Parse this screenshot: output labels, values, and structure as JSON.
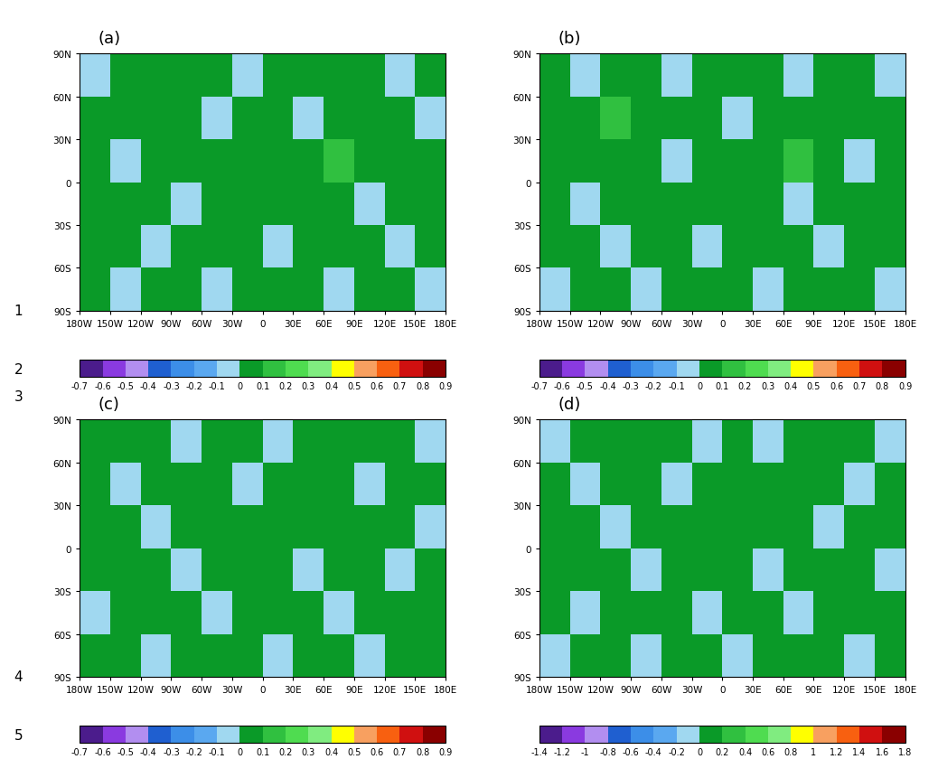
{
  "line_numbers": [
    "1",
    "2",
    "3",
    "4",
    "5"
  ],
  "chart_data": [
    {
      "type": "heatmap",
      "title": "(a)",
      "xlim": [
        -180,
        180
      ],
      "ylim": [
        -90,
        90
      ],
      "xticks": [
        {
          "value": -180,
          "label": "180W"
        },
        {
          "value": -150,
          "label": "150W"
        },
        {
          "value": -120,
          "label": "120W"
        },
        {
          "value": -90,
          "label": "90W"
        },
        {
          "value": -60,
          "label": "60W"
        },
        {
          "value": -30,
          "label": "30W"
        },
        0,
        {
          "value": 30,
          "label": "30E"
        },
        {
          "value": 60,
          "label": "60E"
        },
        {
          "value": 90,
          "label": "90E"
        },
        {
          "value": 120,
          "label": "120E"
        },
        {
          "value": 150,
          "label": "150E"
        },
        {
          "value": 180,
          "label": "180E"
        }
      ],
      "yticks": [
        {
          "value": -90,
          "label": "90S"
        },
        {
          "value": -60,
          "label": "60S"
        },
        {
          "value": -30,
          "label": "30S"
        },
        0,
        {
          "value": 30,
          "label": "30N"
        },
        {
          "value": 60,
          "label": "60N"
        },
        {
          "value": 90,
          "label": "90N"
        }
      ],
      "cells": [
        [
          0.05,
          -0.05,
          0.05,
          0.05,
          -0.05,
          0.05,
          0.05,
          0.05,
          -0.05,
          0.05,
          0.05,
          -0.05
        ],
        [
          0.05,
          0.05,
          -0.05,
          0.05,
          0.05,
          0.05,
          -0.05,
          0.05,
          0.05,
          0.05,
          -0.05,
          0.05
        ],
        [
          0.05,
          0.05,
          0.05,
          -0.05,
          0.05,
          0.05,
          0.05,
          0.05,
          0.05,
          -0.05,
          0.05,
          0.05
        ],
        [
          0.05,
          -0.05,
          0.05,
          0.05,
          0.05,
          0.05,
          0.05,
          0.05,
          0.15,
          0.05,
          0.05,
          0.05
        ],
        [
          0.05,
          0.05,
          0.05,
          0.05,
          -0.05,
          0.05,
          0.05,
          -0.05,
          0.05,
          0.05,
          0.05,
          -0.05
        ],
        [
          -0.05,
          0.05,
          0.05,
          0.05,
          0.05,
          -0.05,
          0.05,
          0.05,
          0.05,
          0.05,
          -0.05,
          0.05
        ]
      ],
      "colorbar": {
        "range": [
          -0.7,
          0.9
        ],
        "ticks": [
          -0.7,
          -0.6,
          -0.5,
          -0.4,
          -0.3,
          -0.2,
          -0.1,
          0,
          0.1,
          0.2,
          0.3,
          0.4,
          0.5,
          0.6,
          0.7,
          0.8,
          0.9
        ],
        "colors": [
          "#4b1c8c",
          "#8a3ae0",
          "#b28ef0",
          "#1f5fd0",
          "#3c8ee8",
          "#5aa8f0",
          "#a0d8f0",
          "#0a9a28",
          "#30c040",
          "#4fdc50",
          "#80ec80",
          "#ffff00",
          "#f8a060",
          "#f86010",
          "#d01010",
          "#8a0000"
        ]
      }
    },
    {
      "type": "heatmap",
      "title": "(b)",
      "xlim": [
        -180,
        180
      ],
      "ylim": [
        -90,
        90
      ],
      "xticks": [
        {
          "value": -180,
          "label": "180W"
        },
        {
          "value": -150,
          "label": "150W"
        },
        {
          "value": -120,
          "label": "120W"
        },
        {
          "value": -90,
          "label": "90W"
        },
        {
          "value": -60,
          "label": "60W"
        },
        {
          "value": -30,
          "label": "30W"
        },
        0,
        {
          "value": 30,
          "label": "30E"
        },
        {
          "value": 60,
          "label": "60E"
        },
        {
          "value": 90,
          "label": "90E"
        },
        {
          "value": 120,
          "label": "120E"
        },
        {
          "value": 150,
          "label": "150E"
        },
        {
          "value": 180,
          "label": "180E"
        }
      ],
      "yticks": [
        {
          "value": -90,
          "label": "90S"
        },
        {
          "value": -60,
          "label": "60S"
        },
        {
          "value": -30,
          "label": "30S"
        },
        0,
        {
          "value": 30,
          "label": "30N"
        },
        {
          "value": 60,
          "label": "60N"
        },
        {
          "value": 90,
          "label": "90N"
        }
      ],
      "cells": [
        [
          -0.05,
          0.05,
          0.05,
          -0.05,
          0.05,
          0.05,
          0.05,
          -0.05,
          0.05,
          0.05,
          0.05,
          -0.05
        ],
        [
          0.05,
          0.05,
          -0.05,
          0.05,
          0.05,
          -0.05,
          0.05,
          0.05,
          0.05,
          -0.05,
          0.05,
          0.05
        ],
        [
          0.05,
          -0.05,
          0.05,
          0.05,
          0.05,
          0.05,
          0.05,
          0.05,
          -0.05,
          0.05,
          0.05,
          0.05
        ],
        [
          0.05,
          0.05,
          0.05,
          0.05,
          -0.05,
          0.05,
          0.05,
          0.05,
          0.15,
          0.05,
          -0.05,
          0.05
        ],
        [
          0.05,
          0.05,
          0.15,
          0.05,
          0.05,
          0.05,
          -0.05,
          0.05,
          0.05,
          0.05,
          0.05,
          0.05
        ],
        [
          0.05,
          -0.05,
          0.05,
          0.05,
          -0.05,
          0.05,
          0.05,
          0.05,
          -0.05,
          0.05,
          0.05,
          -0.05
        ]
      ],
      "colorbar": {
        "range": [
          -0.7,
          0.9
        ],
        "ticks": [
          -0.7,
          -0.6,
          -0.5,
          -0.4,
          -0.3,
          -0.2,
          -0.1,
          0,
          0.1,
          0.2,
          0.3,
          0.4,
          0.5,
          0.6,
          0.7,
          0.8,
          0.9
        ],
        "colors": [
          "#4b1c8c",
          "#8a3ae0",
          "#b28ef0",
          "#1f5fd0",
          "#3c8ee8",
          "#5aa8f0",
          "#a0d8f0",
          "#0a9a28",
          "#30c040",
          "#4fdc50",
          "#80ec80",
          "#ffff00",
          "#f8a060",
          "#f86010",
          "#d01010",
          "#8a0000"
        ]
      }
    },
    {
      "type": "heatmap",
      "title": "(c)",
      "xlim": [
        -180,
        180
      ],
      "ylim": [
        -90,
        90
      ],
      "xticks": [
        {
          "value": -180,
          "label": "180W"
        },
        {
          "value": -150,
          "label": "150W"
        },
        {
          "value": -120,
          "label": "120W"
        },
        {
          "value": -90,
          "label": "90W"
        },
        {
          "value": -60,
          "label": "60W"
        },
        {
          "value": -30,
          "label": "30W"
        },
        0,
        {
          "value": 30,
          "label": "30E"
        },
        {
          "value": 60,
          "label": "60E"
        },
        {
          "value": 90,
          "label": "90E"
        },
        {
          "value": 120,
          "label": "120E"
        },
        {
          "value": 150,
          "label": "150E"
        },
        {
          "value": 180,
          "label": "180E"
        }
      ],
      "yticks": [
        {
          "value": -90,
          "label": "90S"
        },
        {
          "value": -60,
          "label": "60S"
        },
        {
          "value": -30,
          "label": "30S"
        },
        0,
        {
          "value": 30,
          "label": "30N"
        },
        {
          "value": 60,
          "label": "60N"
        },
        {
          "value": 90,
          "label": "90N"
        }
      ],
      "cells": [
        [
          0.05,
          0.05,
          -0.05,
          0.05,
          0.05,
          0.05,
          -0.05,
          0.05,
          0.05,
          -0.05,
          0.05,
          0.05
        ],
        [
          -0.05,
          0.05,
          0.05,
          0.05,
          -0.05,
          0.05,
          0.05,
          0.05,
          -0.05,
          0.05,
          0.05,
          0.05
        ],
        [
          0.05,
          0.05,
          0.05,
          -0.05,
          0.05,
          0.05,
          0.05,
          -0.05,
          0.05,
          0.05,
          -0.05,
          0.05
        ],
        [
          0.05,
          0.05,
          -0.05,
          0.05,
          0.05,
          0.05,
          0.05,
          0.05,
          0.05,
          0.05,
          0.05,
          -0.05
        ],
        [
          0.05,
          -0.05,
          0.05,
          0.05,
          0.05,
          -0.05,
          0.05,
          0.05,
          0.05,
          -0.05,
          0.05,
          0.05
        ],
        [
          0.05,
          0.05,
          0.05,
          -0.05,
          0.05,
          0.05,
          -0.05,
          0.05,
          0.05,
          0.05,
          0.05,
          -0.05
        ]
      ],
      "colorbar": {
        "range": [
          -0.7,
          0.9
        ],
        "ticks": [
          -0.7,
          -0.6,
          -0.5,
          -0.4,
          -0.3,
          -0.2,
          -0.1,
          0,
          0.1,
          0.2,
          0.3,
          0.4,
          0.5,
          0.6,
          0.7,
          0.8,
          0.9
        ],
        "colors": [
          "#4b1c8c",
          "#8a3ae0",
          "#b28ef0",
          "#1f5fd0",
          "#3c8ee8",
          "#5aa8f0",
          "#a0d8f0",
          "#0a9a28",
          "#30c040",
          "#4fdc50",
          "#80ec80",
          "#ffff00",
          "#f8a060",
          "#f86010",
          "#d01010",
          "#8a0000"
        ]
      }
    },
    {
      "type": "heatmap",
      "title": "(d)",
      "xlim": [
        -180,
        180
      ],
      "ylim": [
        -90,
        90
      ],
      "xticks": [
        {
          "value": -180,
          "label": "180W"
        },
        {
          "value": -150,
          "label": "150W"
        },
        {
          "value": -120,
          "label": "120W"
        },
        {
          "value": -90,
          "label": "90W"
        },
        {
          "value": -60,
          "label": "60W"
        },
        {
          "value": -30,
          "label": "30W"
        },
        0,
        {
          "value": 30,
          "label": "30E"
        },
        {
          "value": 60,
          "label": "60E"
        },
        {
          "value": 90,
          "label": "90E"
        },
        {
          "value": 120,
          "label": "120E"
        },
        {
          "value": 150,
          "label": "150E"
        },
        {
          "value": 180,
          "label": "180E"
        }
      ],
      "yticks": [
        {
          "value": -90,
          "label": "90S"
        },
        {
          "value": -60,
          "label": "60S"
        },
        {
          "value": -30,
          "label": "30S"
        },
        0,
        {
          "value": 30,
          "label": "30N"
        },
        {
          "value": 60,
          "label": "60N"
        },
        {
          "value": 90,
          "label": "90N"
        }
      ],
      "cells": [
        [
          -0.1,
          0.1,
          0.1,
          -0.1,
          0.1,
          0.1,
          -0.1,
          0.1,
          0.1,
          0.1,
          -0.1,
          0.1
        ],
        [
          0.1,
          -0.1,
          0.1,
          0.1,
          0.1,
          -0.1,
          0.1,
          0.1,
          -0.1,
          0.1,
          0.1,
          0.1
        ],
        [
          0.1,
          0.1,
          0.1,
          -0.1,
          0.1,
          0.1,
          0.1,
          -0.1,
          0.1,
          0.1,
          0.1,
          -0.1
        ],
        [
          0.1,
          0.1,
          -0.1,
          0.1,
          0.1,
          0.1,
          0.1,
          0.1,
          0.1,
          -0.1,
          0.1,
          0.1
        ],
        [
          0.1,
          -0.1,
          0.1,
          0.1,
          -0.1,
          0.1,
          0.1,
          0.1,
          0.1,
          0.1,
          -0.1,
          0.1
        ],
        [
          -0.1,
          0.1,
          0.1,
          0.1,
          0.1,
          -0.1,
          0.1,
          -0.1,
          0.1,
          0.1,
          0.1,
          -0.1
        ]
      ],
      "colorbar": {
        "range": [
          -1.4,
          1.8
        ],
        "ticks": [
          -1.4,
          -1.2,
          -1,
          -0.8,
          -0.6,
          -0.4,
          -0.2,
          0,
          0.2,
          0.4,
          0.6,
          0.8,
          1,
          1.2,
          1.4,
          1.6,
          1.8
        ],
        "colors": [
          "#4b1c8c",
          "#8a3ae0",
          "#b28ef0",
          "#1f5fd0",
          "#3c8ee8",
          "#5aa8f0",
          "#a0d8f0",
          "#0a9a28",
          "#30c040",
          "#4fdc50",
          "#80ec80",
          "#ffff00",
          "#f8a060",
          "#f86010",
          "#d01010",
          "#8a0000"
        ]
      }
    }
  ]
}
